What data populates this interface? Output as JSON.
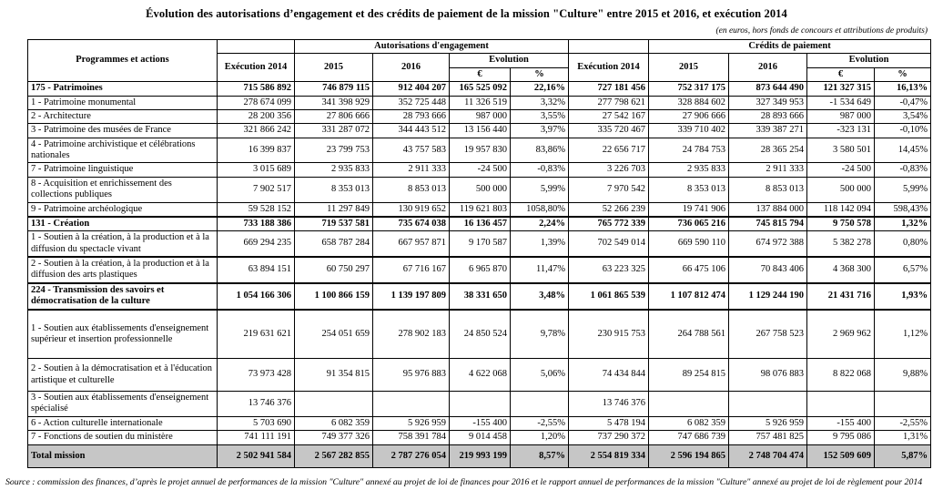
{
  "title": "Évolution des autorisations d’engagement et des crédits de paiement de la mission \"Culture\" entre 2015 et 2016, et exécution 2014",
  "subtitle": "(en euros, hors fonds de concours et attributions de produits)",
  "source_note": "Source : commission des finances, d’après le projet annuel de performances de la mission \"Culture\" annexé au projet de loi de finances pour 2016 et le rapport annuel de performances de la mission \"Culture\" annexé au projet de loi de règlement pour 2014",
  "colors": {
    "total_row_background": "#c6c6c6",
    "border": "#000000",
    "text": "#000000"
  },
  "table": {
    "corner_header": "Programmes et actions",
    "groups": [
      {
        "label": "Autorisations d'engagement"
      },
      {
        "label": "Crédits de paiement"
      }
    ],
    "exec_header": "Exécution 2014",
    "year_headers": [
      "2015",
      "2016"
    ],
    "evolution_label": "Evolution",
    "evolution_sub": [
      "€",
      "%"
    ],
    "rows": [
      {
        "label": "175 - Patrimoines",
        "bold": true,
        "ae": [
          "715 586 892",
          "746 879 115",
          "912 404 207",
          "165 525 092",
          "22,16%"
        ],
        "cp": [
          "727 181 456",
          "752 317 175",
          "873 644 490",
          "121 327 315",
          "16,13%"
        ]
      },
      {
        "label": "1 - Patrimoine monumental",
        "ae": [
          "278 674 099",
          "341 398 929",
          "352 725 448",
          "11 326 519",
          "3,32%"
        ],
        "cp": [
          "277 798 621",
          "328 884 602",
          "327 349 953",
          "-1 534 649",
          "-0,47%"
        ]
      },
      {
        "label": "2 - Architecture",
        "ae": [
          "28 200 356",
          "27 806 666",
          "28 793 666",
          "987 000",
          "3,55%"
        ],
        "cp": [
          "27 542 167",
          "27 906 666",
          "28 893 666",
          "987 000",
          "3,54%"
        ]
      },
      {
        "label": "3 - Patrimoine des musées de France",
        "ae": [
          "321 866 242",
          "331 287 072",
          "344 443 512",
          "13 156 440",
          "3,97%"
        ],
        "cp": [
          "335 720 467",
          "339 710 402",
          "339 387 271",
          "-323 131",
          "-0,10%"
        ]
      },
      {
        "label": "4 - Patrimoine archivistique et célébrations nationales",
        "ae": [
          "16 399 837",
          "23 799 753",
          "43 757 583",
          "19 957 830",
          "83,86%"
        ],
        "cp": [
          "22 656 717",
          "24 784 753",
          "28 365 254",
          "3 580 501",
          "14,45%"
        ]
      },
      {
        "label": "7 - Patrimoine linguistique",
        "ae": [
          "3 015 689",
          "2 935 833",
          "2 911 333",
          "-24 500",
          "-0,83%"
        ],
        "cp": [
          "3 226 703",
          "2 935 833",
          "2 911 333",
          "-24 500",
          "-0,83%"
        ]
      },
      {
        "label": "8 - Acquisition et enrichissement des collections publiques",
        "ae": [
          "7 902 517",
          "8 353 013",
          "8 853 013",
          "500 000",
          "5,99%"
        ],
        "cp": [
          "7 970 542",
          "8 353 013",
          "8 853 013",
          "500 000",
          "5,99%"
        ]
      },
      {
        "label": "9 - Patrimoine archéologique",
        "ae": [
          "59 528 152",
          "11 297 849",
          "130 919 652",
          "119 621 803",
          "1058,80%"
        ],
        "cp": [
          "52 266 239",
          "19 741 906",
          "137 884 000",
          "118 142 094",
          "598,43%"
        ]
      },
      {
        "label": "131 - Création",
        "bold": true,
        "thickTop": true,
        "ae": [
          "733 188 386",
          "719 537 581",
          "735 674 038",
          "16 136 457",
          "2,24%"
        ],
        "cp": [
          "765 772 339",
          "736 065 216",
          "745 815 794",
          "9 750 578",
          "1,32%"
        ]
      },
      {
        "label": "1 - Soutien à la création, à la production et à la diffusion du spectacle vivant",
        "ae": [
          "669 294 235",
          "658 787 284",
          "667 957 871",
          "9 170 587",
          "1,39%"
        ],
        "cp": [
          "702 549 014",
          "669 590 110",
          "674 972 388",
          "5 382 278",
          "0,80%"
        ]
      },
      {
        "label": "2 - Soutien à la création, à la production et à la diffusion des arts plastiques",
        "thickTop": true,
        "ae": [
          "63 894 151",
          "60 750 297",
          "67 716 167",
          "6 965 870",
          "11,47%"
        ],
        "cp": [
          "63 223 325",
          "66 475 106",
          "70 843 406",
          "4 368 300",
          "6,57%"
        ]
      },
      {
        "label": "224 - Transmission des savoirs et démocratisation de la culture",
        "bold": true,
        "thickTop": true,
        "ae": [
          "1 054 166 306",
          "1 100 866 159",
          "1 139 197 809",
          "38 331 650",
          "3,48%"
        ],
        "cp": [
          "1 061 865 539",
          "1 107 812 474",
          "1 129 244 190",
          "21 431 716",
          "1,93%"
        ]
      },
      {
        "label": "1 - Soutien aux établissements d'enseignement supérieur et insertion professionnelle",
        "size": "xtall",
        "thickTop": true,
        "ae": [
          "219 631 621",
          "254 051 659",
          "278 902 183",
          "24 850 524",
          "9,78%"
        ],
        "cp": [
          "230 915 753",
          "264 788 561",
          "267 758 523",
          "2 969 962",
          "1,12%"
        ]
      },
      {
        "label": "2 - Soutien à la démocratisation et à l'éducation artistique et culturelle",
        "size": "tall",
        "ae": [
          "73 973 428",
          "91 354 815",
          "95 976 883",
          "4 622 068",
          "5,06%"
        ],
        "cp": [
          "74 434 844",
          "89 254 815",
          "98 076 883",
          "8 822 068",
          "9,88%"
        ]
      },
      {
        "label": "3 - Soutien aux établissements d'enseignement spécialisé",
        "ae": [
          "13 746 376",
          "",
          "",
          "",
          ""
        ],
        "cp": [
          "13 746 376",
          "",
          "",
          "",
          ""
        ]
      },
      {
        "label": "6 - Action culturelle internationale",
        "ae": [
          "5 703 690",
          "6 082 359",
          "5 926 959",
          "-155 400",
          "-2,55%"
        ],
        "cp": [
          "5 478 194",
          "6 082 359",
          "5 926 959",
          "-155 400",
          "-2,55%"
        ]
      },
      {
        "label": "7 - Fonctions de soutien du ministère",
        "ae": [
          "741 111 191",
          "749 377 326",
          "758 391 784",
          "9 014 458",
          "1,20%"
        ],
        "cp": [
          "737 290 372",
          "747 686 739",
          "757 481 825",
          "9 795 086",
          "1,31%"
        ]
      },
      {
        "label": "Total mission",
        "bold": true,
        "total": true,
        "ae": [
          "2 502 941 584",
          "2 567 282 855",
          "2 787 276 054",
          "219 993 199",
          "8,57%"
        ],
        "cp": [
          "2 554 819 334",
          "2 596 194 865",
          "2 748 704 474",
          "152 509 609",
          "5,87%"
        ]
      }
    ]
  }
}
